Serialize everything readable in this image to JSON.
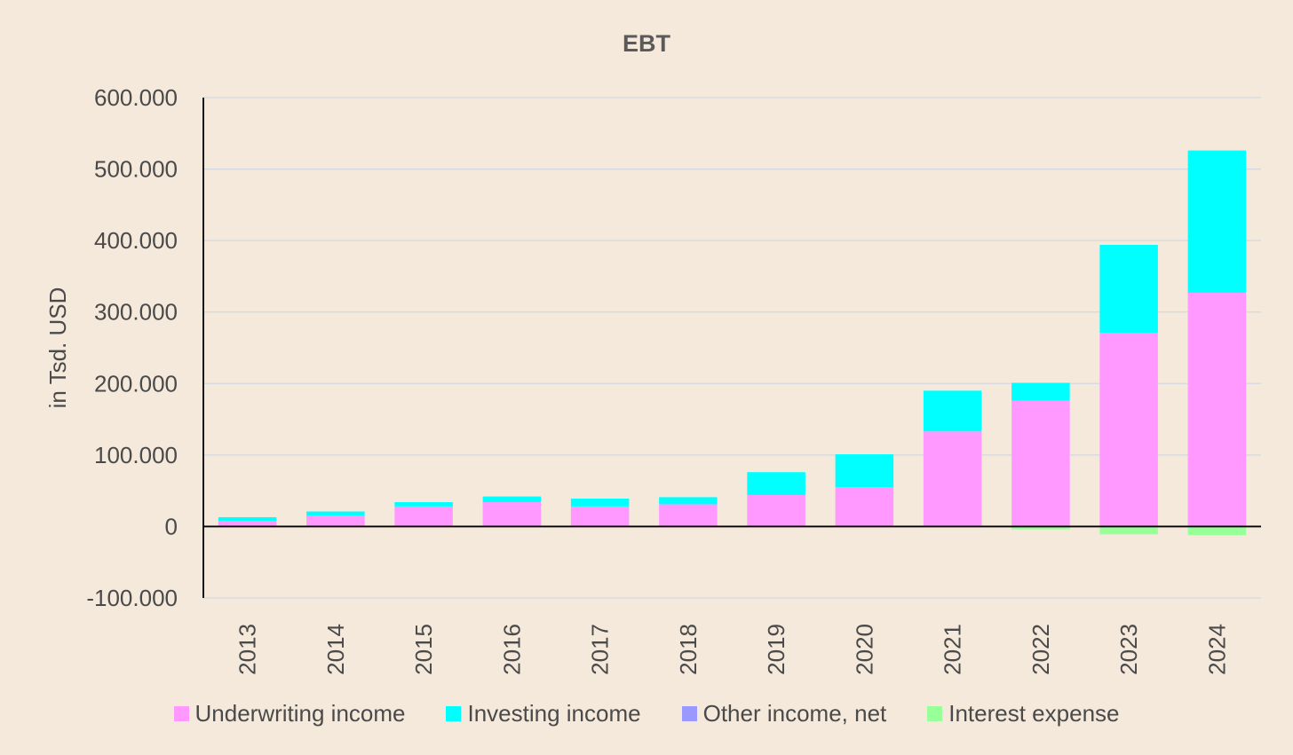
{
  "chart_data": {
    "type": "bar",
    "stacked": true,
    "title": "EBT",
    "xlabel": "",
    "ylabel": "in Tsd. USD",
    "ylim": [
      -100000,
      600000
    ],
    "yticks": [
      600000,
      500000,
      400000,
      300000,
      200000,
      100000,
      0,
      -100000
    ],
    "ytick_labels": [
      "600.000",
      "500.000",
      "400.000",
      "300.000",
      "200.000",
      "100.000",
      "0",
      "-100.000"
    ],
    "grid": true,
    "legend_position": "bottom",
    "categories": [
      "2013",
      "2014",
      "2015",
      "2016",
      "2017",
      "2018",
      "2019",
      "2020",
      "2021",
      "2022",
      "2023",
      "2024"
    ],
    "series": [
      {
        "name": "Underwriting income",
        "color": "#ff99ff",
        "values": [
          8000,
          15000,
          28000,
          34000,
          28000,
          31000,
          44000,
          55000,
          133000,
          176000,
          271000,
          327000
        ]
      },
      {
        "name": "Investing income",
        "color": "#00ffff",
        "values": [
          5000,
          6000,
          6000,
          8000,
          11000,
          10000,
          32000,
          46000,
          57000,
          25000,
          123000,
          199000
        ]
      },
      {
        "name": "Other income, net",
        "color": "#9999ff",
        "values": [
          0,
          0,
          0,
          0,
          0,
          0,
          0,
          0,
          0,
          0,
          0,
          0
        ]
      },
      {
        "name": "Interest expense",
        "color": "#99ff99",
        "values": [
          0,
          0,
          0,
          -1000,
          0,
          0,
          0,
          0,
          -1000,
          -4000,
          -11000,
          -12000
        ]
      }
    ]
  }
}
